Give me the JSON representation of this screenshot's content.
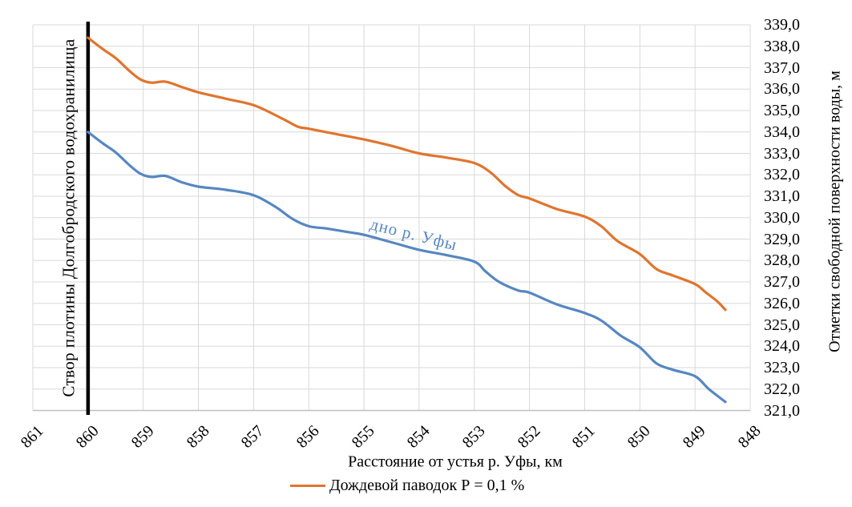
{
  "chart_data": {
    "type": "line",
    "title": "",
    "xlabel": "Расстояние от устья р. Уфы, км",
    "ylabel": "Отметки свободной поверхности воды, м",
    "x_axis_reversed": true,
    "xlim": [
      861,
      848
    ],
    "ylim": [
      321,
      339
    ],
    "y_step": 1.0,
    "grid": "on",
    "legend_position": "bottom",
    "x_ticks": [
      861,
      860,
      859,
      858,
      857,
      856,
      855,
      854,
      853,
      852,
      851,
      850,
      849,
      848
    ],
    "x_tick_labels": [
      "861",
      "860",
      "859",
      "858",
      "857",
      "856",
      "855",
      "854",
      "853",
      "852",
      "851",
      "850",
      "849",
      "848"
    ],
    "y_tick_labels": [
      "339,0",
      "338,0",
      "337,0",
      "336,0",
      "335,0",
      "334,0",
      "333,0",
      "332,0",
      "331,0",
      "330,0",
      "329,0",
      "328,0",
      "327,0",
      "326,0",
      "325,0",
      "324,0",
      "323,0",
      "322,0",
      "321,0"
    ],
    "colors": {
      "gridline": "#D9D9D9",
      "axis_line": "#BFBFBF",
      "background": "#FFFFFF"
    },
    "dam": {
      "x": 860,
      "label": "Створ плотины Долгобродского водохранилища",
      "color": "#000000"
    },
    "series_label": {
      "text": "дно р. Уфы",
      "x": 854.1,
      "y": 329.2,
      "angle_deg": 14
    },
    "series": [
      {
        "id": "rain-flood-p01",
        "name": "Дождевой паводок Р = 0,1 %",
        "color": "#E0752F",
        "in_legend": true,
        "points": [
          [
            860.0,
            338.4
          ],
          [
            859.75,
            337.9
          ],
          [
            859.5,
            337.45
          ],
          [
            859.25,
            336.85
          ],
          [
            859.05,
            336.45
          ],
          [
            858.85,
            336.3
          ],
          [
            858.6,
            336.35
          ],
          [
            858.3,
            336.1
          ],
          [
            858.0,
            335.85
          ],
          [
            857.5,
            335.55
          ],
          [
            857.0,
            335.25
          ],
          [
            856.5,
            334.65
          ],
          [
            856.2,
            334.25
          ],
          [
            856.0,
            334.15
          ],
          [
            855.5,
            333.9
          ],
          [
            855.0,
            333.65
          ],
          [
            854.5,
            333.35
          ],
          [
            854.0,
            333.0
          ],
          [
            853.5,
            332.8
          ],
          [
            853.0,
            332.55
          ],
          [
            852.7,
            332.1
          ],
          [
            852.45,
            331.5
          ],
          [
            852.2,
            331.05
          ],
          [
            852.0,
            330.9
          ],
          [
            851.5,
            330.4
          ],
          [
            851.0,
            330.05
          ],
          [
            850.7,
            329.6
          ],
          [
            850.4,
            328.9
          ],
          [
            850.0,
            328.3
          ],
          [
            849.7,
            327.6
          ],
          [
            849.4,
            327.3
          ],
          [
            849.0,
            326.9
          ],
          [
            848.8,
            326.5
          ],
          [
            848.6,
            326.1
          ],
          [
            848.45,
            325.7
          ]
        ]
      },
      {
        "id": "riverbed",
        "name": "дно р. Уфы",
        "color": "#5687C2",
        "in_legend": false,
        "points": [
          [
            860.0,
            334.0
          ],
          [
            859.75,
            333.5
          ],
          [
            859.5,
            333.05
          ],
          [
            859.25,
            332.45
          ],
          [
            859.05,
            332.05
          ],
          [
            858.85,
            331.9
          ],
          [
            858.6,
            331.95
          ],
          [
            858.3,
            331.65
          ],
          [
            858.0,
            331.45
          ],
          [
            857.5,
            331.3
          ],
          [
            857.0,
            331.05
          ],
          [
            856.6,
            330.5
          ],
          [
            856.3,
            329.95
          ],
          [
            856.0,
            329.6
          ],
          [
            855.7,
            329.5
          ],
          [
            855.35,
            329.35
          ],
          [
            855.0,
            329.2
          ],
          [
            854.5,
            328.85
          ],
          [
            854.0,
            328.5
          ],
          [
            853.5,
            328.25
          ],
          [
            853.0,
            327.95
          ],
          [
            852.8,
            327.5
          ],
          [
            852.55,
            327.0
          ],
          [
            852.2,
            326.6
          ],
          [
            852.0,
            326.5
          ],
          [
            851.5,
            325.95
          ],
          [
            851.0,
            325.55
          ],
          [
            850.7,
            325.2
          ],
          [
            850.35,
            324.5
          ],
          [
            850.0,
            323.95
          ],
          [
            849.7,
            323.2
          ],
          [
            849.4,
            322.9
          ],
          [
            849.0,
            322.6
          ],
          [
            848.75,
            322.0
          ],
          [
            848.45,
            321.4
          ]
        ]
      }
    ]
  }
}
